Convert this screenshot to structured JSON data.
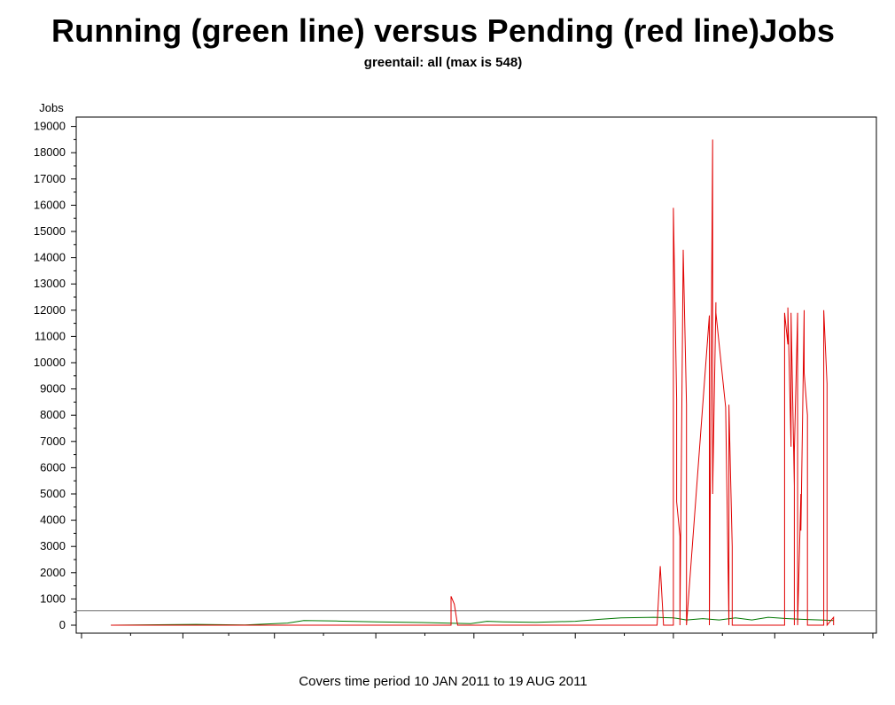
{
  "title": "Running (green line) versus Pending (red line)Jobs",
  "subtitle": "greentail: all (max is 548)",
  "footer": "Covers time period 10 JAN 2011 to 19 AUG 2011",
  "colors": {
    "running": "#007700",
    "pending": "#e00000",
    "reference": "#777777",
    "axis": "#000000"
  },
  "chart_data": {
    "type": "line",
    "title": "Running (green line) versus Pending (red line)Jobs",
    "subtitle": "greentail: all (max is 548)",
    "ylabel": "Jobs",
    "xlabel": "",
    "ylim": [
      0,
      19000
    ],
    "yticks": [
      0,
      1000,
      2000,
      3000,
      4000,
      5000,
      6000,
      7000,
      8000,
      9000,
      10000,
      11000,
      12000,
      13000,
      14000,
      15000,
      16000,
      17000,
      18000,
      19000
    ],
    "xlim": [
      "2011-01-01",
      "2011-08-31"
    ],
    "reference_line": 548,
    "series": [
      {
        "name": "Running",
        "color": "#007700",
        "points": [
          [
            "2011-01-10",
            0
          ],
          [
            "2011-01-28",
            20
          ],
          [
            "2011-02-05",
            30
          ],
          [
            "2011-02-20",
            10
          ],
          [
            "2011-03-05",
            80
          ],
          [
            "2011-03-10",
            180
          ],
          [
            "2011-03-20",
            160
          ],
          [
            "2011-04-01",
            130
          ],
          [
            "2011-04-15",
            100
          ],
          [
            "2011-04-30",
            60
          ],
          [
            "2011-05-05",
            150
          ],
          [
            "2011-05-10",
            130
          ],
          [
            "2011-05-20",
            110
          ],
          [
            "2011-06-01",
            150
          ],
          [
            "2011-06-08",
            220
          ],
          [
            "2011-06-15",
            280
          ],
          [
            "2011-06-25",
            300
          ],
          [
            "2011-07-01",
            280
          ],
          [
            "2011-07-05",
            200
          ],
          [
            "2011-07-10",
            250
          ],
          [
            "2011-07-15",
            200
          ],
          [
            "2011-07-20",
            280
          ],
          [
            "2011-07-25",
            200
          ],
          [
            "2011-07-30",
            300
          ],
          [
            "2011-08-05",
            250
          ],
          [
            "2011-08-10",
            220
          ],
          [
            "2011-08-15",
            200
          ],
          [
            "2011-08-19",
            180
          ]
        ]
      },
      {
        "name": "Pending",
        "color": "#e00000",
        "points": [
          [
            "2011-01-10",
            0
          ],
          [
            "2011-04-24",
            0
          ],
          [
            "2011-04-24",
            1100
          ],
          [
            "2011-04-25",
            800
          ],
          [
            "2011-04-26",
            0
          ],
          [
            "2011-06-26",
            0
          ],
          [
            "2011-06-27",
            2250
          ],
          [
            "2011-06-28",
            0
          ],
          [
            "2011-07-01",
            0
          ],
          [
            "2011-07-01",
            15900
          ],
          [
            "2011-07-02",
            8600
          ],
          [
            "2011-07-02",
            4700
          ],
          [
            "2011-07-03",
            3400
          ],
          [
            "2011-07-03",
            0
          ],
          [
            "2011-07-04",
            14300
          ],
          [
            "2011-07-05",
            8400
          ],
          [
            "2011-07-05",
            0
          ],
          [
            "2011-07-12",
            11800
          ],
          [
            "2011-07-12",
            0
          ],
          [
            "2011-07-13",
            18500
          ],
          [
            "2011-07-13",
            5000
          ],
          [
            "2011-07-14",
            12300
          ],
          [
            "2011-07-14",
            11900
          ],
          [
            "2011-07-17",
            8300
          ],
          [
            "2011-07-18",
            0
          ],
          [
            "2011-07-18",
            8400
          ],
          [
            "2011-07-19",
            3000
          ],
          [
            "2011-07-19",
            0
          ],
          [
            "2011-08-04",
            0
          ],
          [
            "2011-08-04",
            11900
          ],
          [
            "2011-08-05",
            10700
          ],
          [
            "2011-08-05",
            12100
          ],
          [
            "2011-08-06",
            6800
          ],
          [
            "2011-08-06",
            11900
          ],
          [
            "2011-08-07",
            5300
          ],
          [
            "2011-08-07",
            0
          ],
          [
            "2011-08-07",
            6600
          ],
          [
            "2011-08-08",
            11900
          ],
          [
            "2011-08-08",
            0
          ],
          [
            "2011-08-09",
            5000
          ],
          [
            "2011-08-09",
            3600
          ],
          [
            "2011-08-10",
            12000
          ],
          [
            "2011-08-10",
            9600
          ],
          [
            "2011-08-11",
            8000
          ],
          [
            "2011-08-11",
            0
          ],
          [
            "2011-08-16",
            0
          ],
          [
            "2011-08-16",
            12000
          ],
          [
            "2011-08-17",
            9200
          ],
          [
            "2011-08-17",
            0
          ],
          [
            "2011-08-19",
            300
          ],
          [
            "2011-08-19",
            0
          ]
        ]
      }
    ]
  }
}
